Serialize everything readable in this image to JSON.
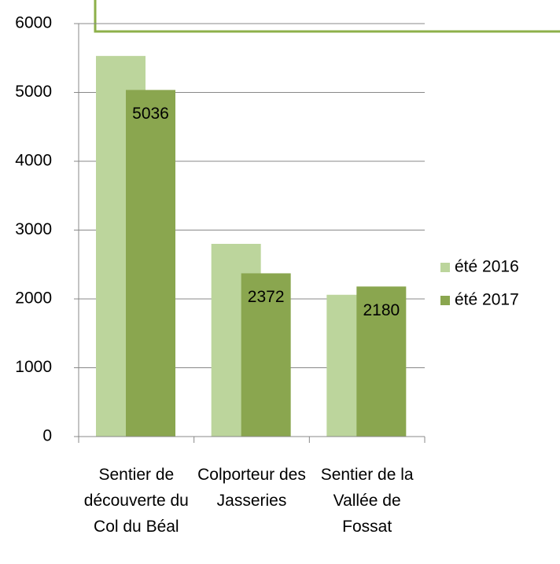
{
  "chart_data": {
    "type": "bar",
    "categories": [
      "Sentier de découverte du Col du Béal",
      "Colporteur des Jasseries",
      "Sentier de la Vallée de Fossat"
    ],
    "series": [
      {
        "name": "été 2016",
        "color": "#bcd59c",
        "values": [
          5530,
          2800,
          2060
        ]
      },
      {
        "name": "été 2017",
        "color": "#8aa64f",
        "values": [
          5036,
          2372,
          2180
        ]
      }
    ],
    "labeled_series": [
      1
    ],
    "ylim": [
      0,
      6000
    ],
    "yticks": [
      0,
      1000,
      2000,
      3000,
      4000,
      5000,
      6000
    ],
    "grid": true,
    "legend": "right"
  }
}
